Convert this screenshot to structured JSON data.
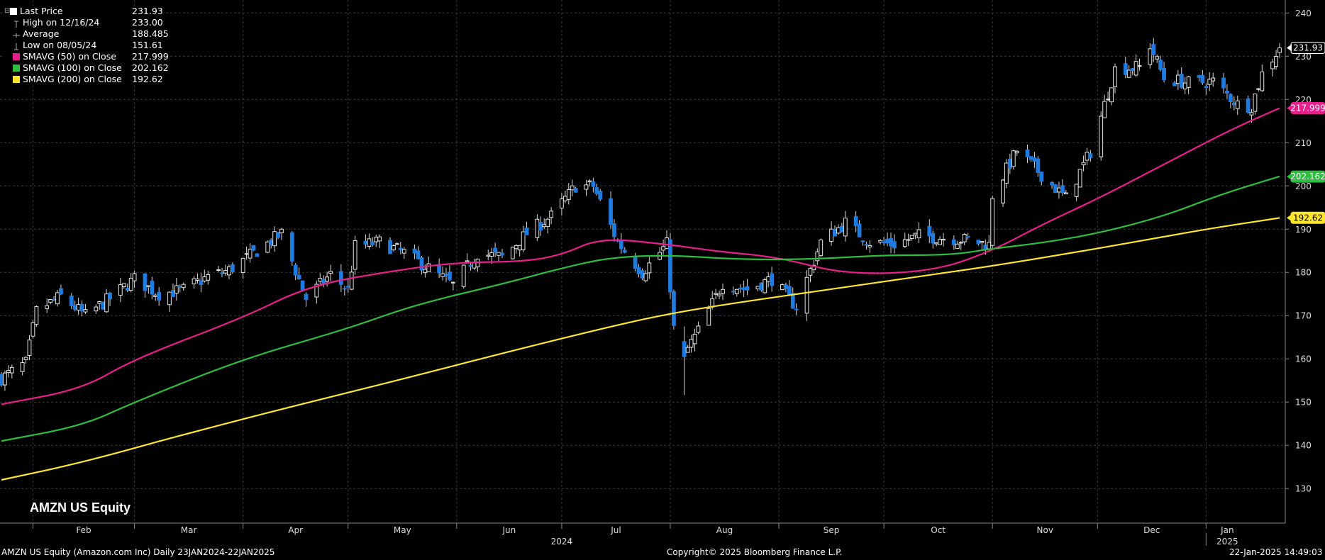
{
  "legend": {
    "collapse_glyph": "⊟",
    "items": [
      {
        "label": "Last Price",
        "value": "231.93",
        "marker": "square-white"
      },
      {
        "label": "High on 12/16/24",
        "value": "233.00",
        "marker": "high-tick"
      },
      {
        "label": "Average",
        "value": "188.485",
        "marker": "avg-tick"
      },
      {
        "label": "Low on 08/05/24",
        "value": "151.61",
        "marker": "low-tick"
      },
      {
        "label": "SMAVG (50)  on Close",
        "value": "217.999",
        "marker": "square",
        "color": "#e91e8c"
      },
      {
        "label": "SMAVG (100)  on Close",
        "value": "202.162",
        "marker": "square",
        "color": "#2dbd3f"
      },
      {
        "label": "SMAVG (200)  on Close",
        "value": "192.62",
        "marker": "square",
        "color": "#ffe62e"
      }
    ]
  },
  "ticker_label": "AMZN US Equity",
  "footer": {
    "left": "AMZN US Equity (Amazon.com Inc)  Daily 23JAN2024-22JAN2025",
    "center": "Copyright© 2025 Bloomberg Finance L.P.",
    "right": "22-Jan-2025 14:49:03"
  },
  "chart_data": {
    "type": "candlestick",
    "ylim": [
      122,
      243
    ],
    "yticks": [
      130,
      140,
      150,
      160,
      170,
      180,
      190,
      200,
      210,
      220,
      230,
      240
    ],
    "months": [
      {
        "label": "Feb",
        "date": "2024-02-01"
      },
      {
        "label": "Mar",
        "date": "2024-03-01"
      },
      {
        "label": "Apr",
        "date": "2024-04-01"
      },
      {
        "label": "May",
        "date": "2024-05-01"
      },
      {
        "label": "Jun",
        "date": "2024-06-01"
      },
      {
        "label": "Jul",
        "date": "2024-07-01"
      },
      {
        "label": "Aug",
        "date": "2024-08-01"
      },
      {
        "label": "Sep",
        "date": "2024-09-01"
      },
      {
        "label": "Oct",
        "date": "2024-10-01"
      },
      {
        "label": "Nov",
        "date": "2024-11-01"
      },
      {
        "label": "Dec",
        "date": "2024-12-01"
      },
      {
        "label": "Jan",
        "date": "2025-01-01"
      }
    ],
    "year_labels": [
      {
        "label": "2024",
        "date": "2024-07-01"
      },
      {
        "label": "2025",
        "date": "2025-01-01"
      }
    ],
    "date_range": [
      "2024-01-23",
      "2025-01-22"
    ],
    "price_anchors": [
      [
        "2024-01-23",
        155.5
      ],
      [
        "2024-01-30",
        159.0
      ],
      [
        "2024-02-02",
        171.0
      ],
      [
        "2024-02-09",
        174.5
      ],
      [
        "2024-02-16",
        170.0
      ],
      [
        "2024-02-23",
        174.0
      ],
      [
        "2024-03-01",
        178.5
      ],
      [
        "2024-03-08",
        175.0
      ],
      [
        "2024-03-15",
        176.0
      ],
      [
        "2024-03-22",
        179.0
      ],
      [
        "2024-03-28",
        180.5
      ],
      [
        "2024-04-05",
        185.0
      ],
      [
        "2024-04-12",
        189.0
      ],
      [
        "2024-04-19",
        174.0
      ],
      [
        "2024-04-26",
        179.5
      ],
      [
        "2024-05-01",
        176.0
      ],
      [
        "2024-05-03",
        186.0
      ],
      [
        "2024-05-10",
        187.0
      ],
      [
        "2024-05-17",
        184.5
      ],
      [
        "2024-05-24",
        181.0
      ],
      [
        "2024-05-31",
        177.0
      ],
      [
        "2024-06-07",
        184.5
      ],
      [
        "2024-06-14",
        183.5
      ],
      [
        "2024-06-21",
        189.0
      ],
      [
        "2024-06-28",
        193.0
      ],
      [
        "2024-07-05",
        200.0
      ],
      [
        "2024-07-10",
        200.0
      ],
      [
        "2024-07-17",
        187.0
      ],
      [
        "2024-07-24",
        180.0
      ],
      [
        "2024-07-31",
        186.5
      ],
      [
        "2024-08-02",
        167.0
      ],
      [
        "2024-08-05",
        161.0
      ],
      [
        "2024-08-09",
        166.5
      ],
      [
        "2024-08-16",
        177.5
      ],
      [
        "2024-08-23",
        176.0
      ],
      [
        "2024-08-30",
        178.5
      ],
      [
        "2024-09-06",
        172.0
      ],
      [
        "2024-09-13",
        187.0
      ],
      [
        "2024-09-20",
        191.5
      ],
      [
        "2024-09-27",
        187.0
      ],
      [
        "2024-10-04",
        186.5
      ],
      [
        "2024-10-11",
        188.5
      ],
      [
        "2024-10-18",
        188.0
      ],
      [
        "2024-10-25",
        187.5
      ],
      [
        "2024-10-31",
        186.4
      ],
      [
        "2024-11-01",
        197.9
      ],
      [
        "2024-11-08",
        208.2
      ],
      [
        "2024-11-15",
        202.6
      ],
      [
        "2024-11-22",
        197.1
      ],
      [
        "2024-11-29",
        207.9
      ],
      [
        "2024-12-06",
        227.0
      ],
      [
        "2024-12-13",
        227.5
      ],
      [
        "2024-12-16",
        232.5
      ],
      [
        "2024-12-20",
        224.9
      ],
      [
        "2024-12-27",
        223.8
      ],
      [
        "2025-01-03",
        224.2
      ],
      [
        "2025-01-10",
        218.9
      ],
      [
        "2025-01-14",
        218.5
      ],
      [
        "2025-01-17",
        225.9
      ],
      [
        "2025-01-21",
        230.7
      ],
      [
        "2025-01-22",
        231.93
      ]
    ],
    "high": {
      "date": "2024-12-16",
      "value": 233.0
    },
    "low": {
      "date": "2024-08-05",
      "value": 151.61
    },
    "last_price": 231.93,
    "series": [
      {
        "name": "SMAVG (50)  on Close",
        "color": "#e91e8c",
        "points": [
          [
            "2024-01-23",
            149.5
          ],
          [
            "2024-02-15",
            153.0
          ],
          [
            "2024-03-01",
            160.0
          ],
          [
            "2024-04-01",
            169.5
          ],
          [
            "2024-04-20",
            177.0
          ],
          [
            "2024-05-15",
            180.5
          ],
          [
            "2024-06-01",
            182.3
          ],
          [
            "2024-06-20",
            182.5
          ],
          [
            "2024-07-01",
            184.0
          ],
          [
            "2024-07-12",
            188.0
          ],
          [
            "2024-07-31",
            186.5
          ],
          [
            "2024-08-15",
            184.8
          ],
          [
            "2024-09-01",
            183.5
          ],
          [
            "2024-09-20",
            179.5
          ],
          [
            "2024-10-15",
            180.2
          ],
          [
            "2024-11-01",
            185.0
          ],
          [
            "2024-11-15",
            191.0
          ],
          [
            "2024-12-01",
            197.0
          ],
          [
            "2024-12-20",
            205.0
          ],
          [
            "2025-01-08",
            213.0
          ],
          [
            "2025-01-22",
            218.0
          ]
        ]
      },
      {
        "name": "SMAVG (100)  on Close",
        "color": "#2dbd3f",
        "points": [
          [
            "2024-01-23",
            141.0
          ],
          [
            "2024-02-15",
            144.5
          ],
          [
            "2024-03-01",
            150.0
          ],
          [
            "2024-04-01",
            160.0
          ],
          [
            "2024-05-01",
            167.0
          ],
          [
            "2024-05-20",
            172.5
          ],
          [
            "2024-06-15",
            177.5
          ],
          [
            "2024-07-01",
            181.0
          ],
          [
            "2024-07-15",
            183.5
          ],
          [
            "2024-08-01",
            184.0
          ],
          [
            "2024-08-20",
            183.0
          ],
          [
            "2024-09-10",
            183.0
          ],
          [
            "2024-10-01",
            184.0
          ],
          [
            "2024-10-20",
            184.0
          ],
          [
            "2024-11-01",
            185.5
          ],
          [
            "2024-11-15",
            186.8
          ],
          [
            "2024-12-01",
            189.0
          ],
          [
            "2024-12-20",
            193.0
          ],
          [
            "2025-01-05",
            198.0
          ],
          [
            "2025-01-22",
            202.2
          ]
        ]
      },
      {
        "name": "SMAVG (200)  on Close",
        "color": "#ffe62e",
        "points": [
          [
            "2024-01-23",
            132.0
          ],
          [
            "2024-02-15",
            136.0
          ],
          [
            "2024-03-15",
            142.5
          ],
          [
            "2024-04-15",
            149.0
          ],
          [
            "2024-05-15",
            155.0
          ],
          [
            "2024-06-15",
            161.5
          ],
          [
            "2024-07-15",
            167.5
          ],
          [
            "2024-08-01",
            170.5
          ],
          [
            "2024-08-20",
            173.0
          ],
          [
            "2024-09-15",
            176.0
          ],
          [
            "2024-10-15",
            179.5
          ],
          [
            "2024-11-01",
            181.5
          ],
          [
            "2024-11-20",
            184.0
          ],
          [
            "2024-12-15",
            187.5
          ],
          [
            "2025-01-01",
            190.0
          ],
          [
            "2025-01-22",
            192.6
          ]
        ]
      }
    ],
    "right_labels": [
      {
        "value": 231.93,
        "text": "231.93",
        "bg": "#000000",
        "fg": "#ffffff",
        "border": "#ffffff"
      },
      {
        "value": 217.999,
        "text": "217.999",
        "bg": "#e91e8c",
        "fg": "#ffffff",
        "border": "#e91e8c"
      },
      {
        "value": 202.162,
        "text": "202.162",
        "bg": "#2dbd3f",
        "fg": "#ffffff",
        "border": "#2dbd3f"
      },
      {
        "value": 192.62,
        "text": "192.62",
        "bg": "#ffe62e",
        "fg": "#000000",
        "border": "#ffe62e"
      }
    ],
    "colors": {
      "up_body": "#000000",
      "up_border": "#e6e6e6",
      "down_body": "#1e7be0",
      "wick": "#d8d8d8",
      "grid": "#3a3a3a",
      "axis": "#8a8a8a"
    }
  }
}
